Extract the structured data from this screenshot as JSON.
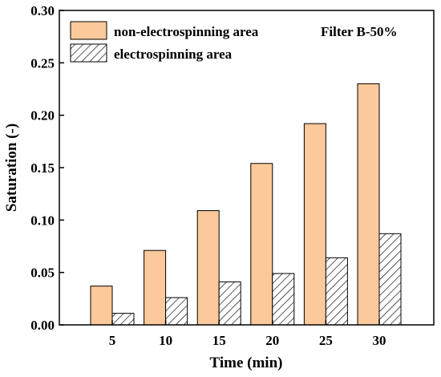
{
  "chart_data": {
    "type": "bar",
    "categories": [
      "5",
      "10",
      "15",
      "20",
      "25",
      "30"
    ],
    "series": [
      {
        "name": "non-electrospinning area",
        "values": [
          0.037,
          0.071,
          0.109,
          0.154,
          0.192,
          0.23
        ]
      },
      {
        "name": "electrospinning area",
        "values": [
          0.011,
          0.026,
          0.041,
          0.049,
          0.064,
          0.087
        ]
      }
    ],
    "xlabel": "Time (min)",
    "ylabel": "Saturation (-)",
    "ylim": [
      0,
      0.3
    ],
    "yticks": [
      "0.00",
      "0.05",
      "0.10",
      "0.15",
      "0.20",
      "0.25",
      "0.30"
    ],
    "annotation": "Filter B-50%",
    "legend_position": "top-left",
    "grid": false,
    "colors": {
      "non_electrospinning": "#fbc99a",
      "electrospinning": "hatched"
    }
  }
}
